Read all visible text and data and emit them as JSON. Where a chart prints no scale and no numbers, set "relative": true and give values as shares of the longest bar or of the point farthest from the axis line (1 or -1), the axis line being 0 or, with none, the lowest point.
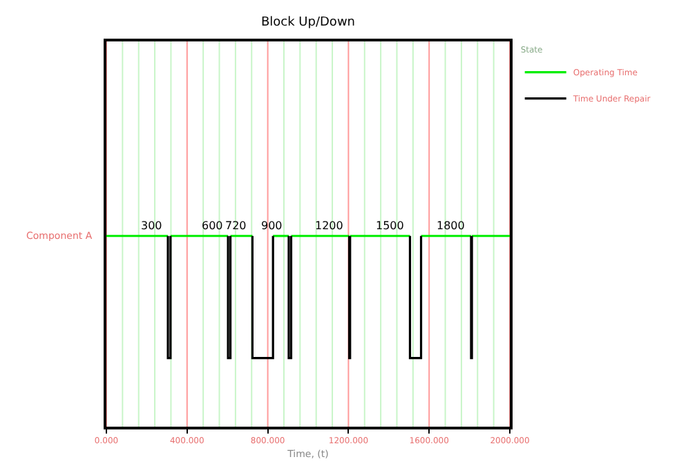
{
  "chart_data": {
    "type": "line",
    "title": "Block Up/Down",
    "xlabel": "Time, (t)",
    "ylabel": "Component A",
    "legend_title": "State",
    "relative": true,
    "legend": "right",
    "grid": "x",
    "marker": "none",
    "xlim": [
      0,
      2000
    ],
    "xticks": [
      {
        "value": 0,
        "label": "0.000"
      },
      {
        "value": 80,
        "label": null
      },
      {
        "value": 160,
        "label": null
      },
      {
        "value": 240,
        "label": null
      },
      {
        "value": 320,
        "label": null
      },
      {
        "value": 400,
        "label": "400.000"
      },
      {
        "value": 480,
        "label": null
      },
      {
        "value": 560,
        "label": null
      },
      {
        "value": 640,
        "label": null
      },
      {
        "value": 720,
        "label": null
      },
      {
        "value": 800,
        "label": "800.000"
      },
      {
        "value": 880,
        "label": null
      },
      {
        "value": 960,
        "label": null
      },
      {
        "value": 1040,
        "label": null
      },
      {
        "value": 1120,
        "label": null
      },
      {
        "value": 1200,
        "label": "1200.000"
      },
      {
        "value": 1280,
        "label": null
      },
      {
        "value": 1360,
        "label": null
      },
      {
        "value": 1440,
        "label": null
      },
      {
        "value": 1520,
        "label": null
      },
      {
        "value": 1600,
        "label": "1600.000"
      },
      {
        "value": 1680,
        "label": null
      },
      {
        "value": 1760,
        "label": null
      },
      {
        "value": 1840,
        "label": null
      },
      {
        "value": 1920,
        "label": null
      },
      {
        "value": 2000,
        "label": "2000.000"
      }
    ],
    "series": [
      {
        "name": "Operating Time",
        "color": "#00ee00",
        "x": [
          0,
          305,
          null,
          318,
          603,
          null,
          615,
          724,
          null,
          826,
          904,
          null,
          916,
          1204,
          null,
          1208,
          1505,
          null,
          1560,
          1808,
          null,
          1812,
          2000
        ],
        "values": [
          1,
          1,
          null,
          1,
          1,
          null,
          1,
          1,
          null,
          1,
          1,
          null,
          1,
          1,
          null,
          1,
          1,
          null,
          1,
          1,
          null,
          1,
          1
        ]
      },
      {
        "name": "Time Under Repair",
        "color": "#000000",
        "x": [
          305,
          305,
          318,
          318,
          null,
          603,
          603,
          615,
          615,
          null,
          724,
          724,
          826,
          826,
          null,
          904,
          904,
          916,
          916,
          null,
          1204,
          1204,
          1208,
          1208,
          null,
          1505,
          1505,
          1560,
          1560,
          null,
          1808,
          1808,
          1812,
          1812
        ],
        "values": [
          1,
          0.36,
          0.36,
          1,
          null,
          1,
          0.36,
          0.36,
          1,
          null,
          1,
          0.36,
          0.36,
          1,
          null,
          1,
          0.36,
          0.36,
          1,
          null,
          1,
          0.36,
          0.36,
          1,
          null,
          1,
          0.36,
          0.36,
          1,
          null,
          1,
          0.36,
          0.36,
          1
        ]
      }
    ],
    "annotations": [
      {
        "text": "300",
        "x": 300,
        "y": 1
      },
      {
        "text": "600",
        "x": 600,
        "y": 1
      },
      {
        "text": "720",
        "x": 720,
        "y": 1
      },
      {
        "text": "900",
        "x": 900,
        "y": 1
      },
      {
        "text": "1200",
        "x": 1200,
        "y": 1
      },
      {
        "text": "1500",
        "x": 1500,
        "y": 1
      },
      {
        "text": "1800",
        "x": 1800,
        "y": 1
      }
    ]
  }
}
